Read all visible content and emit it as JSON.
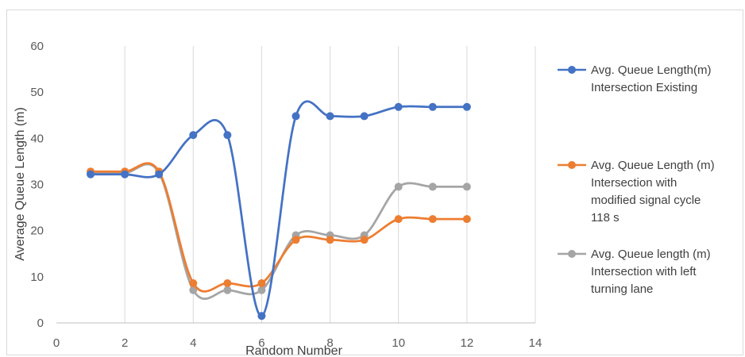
{
  "chart_data": {
    "type": "line",
    "title": "",
    "xlabel": "Random Number",
    "ylabel": "Average Queue Length (m)",
    "xlim": [
      0,
      14
    ],
    "ylim": [
      0,
      60
    ],
    "x_ticks": [
      "0",
      "2",
      "4",
      "6",
      "8",
      "10",
      "12",
      "14"
    ],
    "y_ticks": [
      "0",
      "10",
      "20",
      "30",
      "40",
      "50",
      "60"
    ],
    "grid": "vertical",
    "smooth": true,
    "legend_position": "right",
    "x": [
      1,
      2,
      3,
      4,
      5,
      6,
      7,
      8,
      9,
      10,
      11,
      12
    ],
    "series": [
      {
        "name": "Avg. Queue Length(m)\nIntersection Existing",
        "color": "#4472C4",
        "values": [
          32.2,
          32.2,
          32.2,
          40.7,
          40.7,
          1.5,
          44.8,
          44.8,
          44.8,
          46.8,
          46.8,
          46.8
        ]
      },
      {
        "name": "Avg. Queue Length (m)\nIntersection with\nmodified signal cycle\n118 s",
        "color": "#ED7D31",
        "values": [
          32.8,
          32.8,
          32.8,
          8.6,
          8.6,
          8.6,
          18.0,
          18.0,
          18.0,
          22.5,
          22.5,
          22.5
        ]
      },
      {
        "name": "Avg. Queue length (m)\nIntersection with left\nturning lane",
        "color": "#A5A5A5",
        "values": [
          32.5,
          32.5,
          32.5,
          7.1,
          7.1,
          7.1,
          19.0,
          19.0,
          19.0,
          29.5,
          29.5,
          29.5
        ]
      }
    ]
  }
}
